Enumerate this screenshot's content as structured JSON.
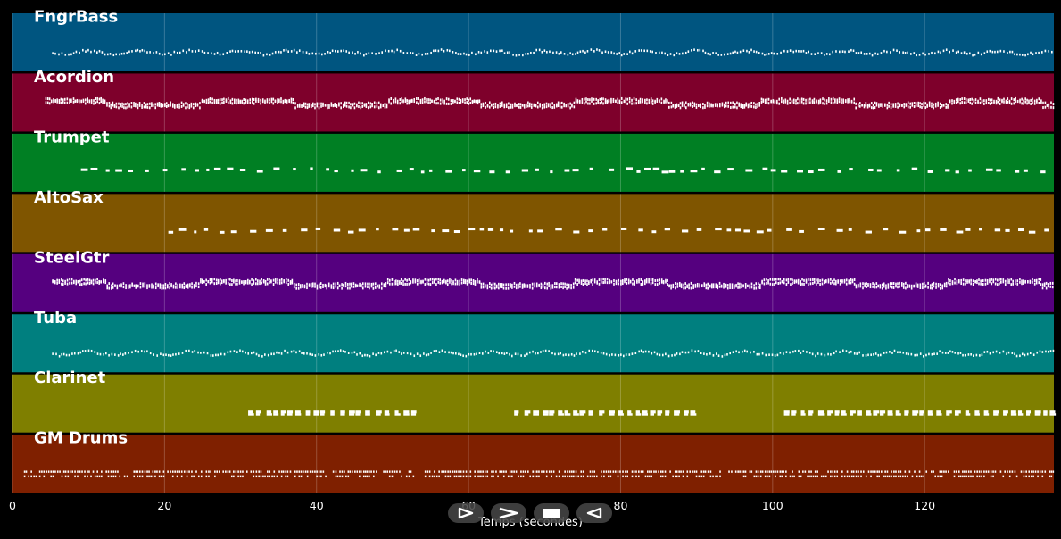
{
  "axis": {
    "title": "Temps (secondes)",
    "ticks": [
      "0",
      "20",
      "40",
      "60",
      "80",
      "100",
      "120"
    ]
  },
  "controls": [
    {
      "name": "play-icon",
      "label": "play"
    },
    {
      "name": "fast-forward-icon",
      "label": "fast-forward"
    },
    {
      "name": "stop-icon",
      "label": "stop"
    },
    {
      "name": "rewind-icon",
      "label": "rewind"
    }
  ],
  "chart_data": {
    "type": "piano-roll",
    "x_range": [
      0,
      137
    ],
    "x_ticks": [
      0,
      20,
      40,
      60,
      80,
      100,
      120
    ],
    "grid": true,
    "tracks": [
      {
        "name": "FngrBass",
        "color": "#005580",
        "start": 5.2,
        "pattern": "bass"
      },
      {
        "name": "Acordion",
        "color": "#7e002b",
        "start": 4.3,
        "pattern": "dense"
      },
      {
        "name": "Trumpet",
        "color": "#007f23",
        "start": 9.0,
        "pattern": "sparse"
      },
      {
        "name": "AltoSax",
        "color": "#7f5500",
        "start": 20.5,
        "pattern": "sparse"
      },
      {
        "name": "SteelGtr",
        "color": "#55007f",
        "start": 5.2,
        "pattern": "dense"
      },
      {
        "name": "Tuba",
        "color": "#007f7f",
        "start": 5.2,
        "pattern": "bass"
      },
      {
        "name": "Clarinet",
        "color": "#7f7f00",
        "start": 31.0,
        "pattern": "clarinet",
        "segments": [
          [
            31.0,
            53.5
          ],
          [
            66.0,
            89.5
          ],
          [
            101.5,
            137
          ]
        ]
      },
      {
        "name": "GM Drums",
        "color": "#7f2000",
        "start": 1.5,
        "pattern": "drums"
      }
    ]
  }
}
